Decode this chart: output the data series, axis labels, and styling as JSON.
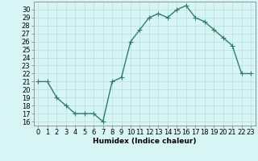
{
  "xlabel": "Humidex (Indice chaleur)",
  "x": [
    0,
    1,
    2,
    3,
    4,
    5,
    6,
    7,
    8,
    9,
    10,
    11,
    12,
    13,
    14,
    15,
    16,
    17,
    18,
    19,
    20,
    21,
    22,
    23
  ],
  "y": [
    21,
    21,
    19,
    18,
    17,
    17,
    17,
    16,
    21,
    21.5,
    26,
    27.5,
    29,
    29.5,
    29,
    30,
    30.5,
    29,
    28.5,
    27.5,
    26.5,
    25.5,
    22,
    22
  ],
  "line_color": "#2e7d6e",
  "bg_color": "#d8f5f5",
  "grid_color": "#b8dede",
  "ylim": [
    15.5,
    31.0
  ],
  "xlim": [
    -0.5,
    23.5
  ],
  "yticks": [
    16,
    17,
    18,
    19,
    20,
    21,
    22,
    23,
    24,
    25,
    26,
    27,
    28,
    29,
    30
  ],
  "marker": "+",
  "marker_size": 4,
  "linewidth": 1.0,
  "axis_fontsize": 6.5,
  "tick_fontsize": 6.0
}
